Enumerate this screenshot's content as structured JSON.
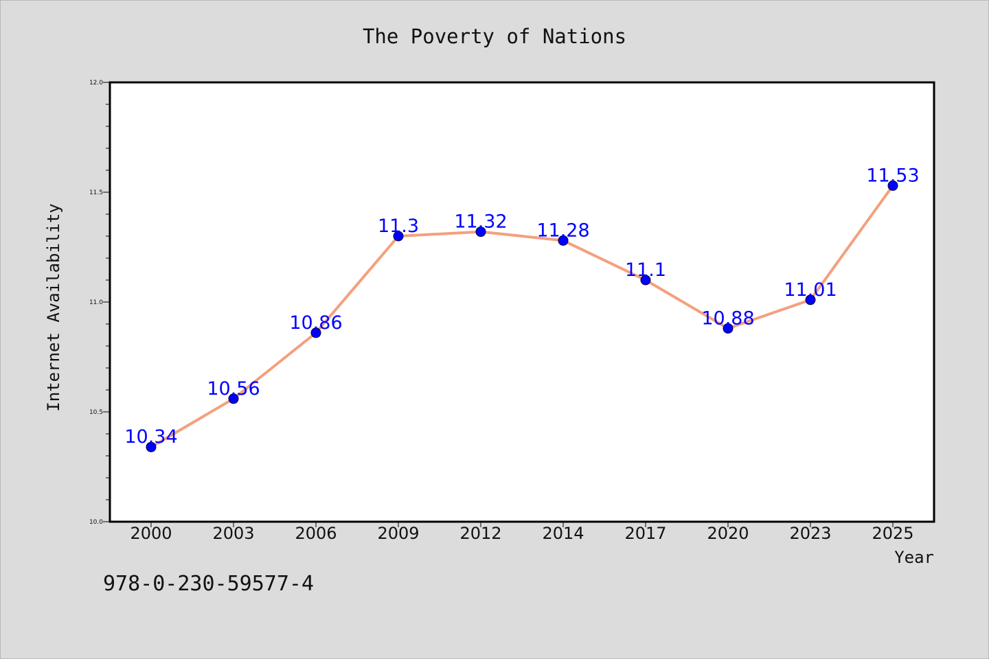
{
  "chart_data": {
    "type": "line",
    "title": "The Poverty of Nations",
    "xlabel": "Year",
    "ylabel": "Internet Availability",
    "categories": [
      "2000",
      "2003",
      "2006",
      "2009",
      "2012",
      "2014",
      "2017",
      "2020",
      "2023",
      "2025"
    ],
    "series": [
      {
        "values": [
          10.34,
          10.56,
          10.86,
          11.3,
          11.32,
          11.28,
          11.1,
          10.88,
          11.01,
          11.53
        ],
        "data_labels": [
          "10.34",
          "10.56",
          "10.86",
          "11.3",
          "11.32",
          "11.28",
          "11.1",
          "10.88",
          "11.01",
          "11.53"
        ]
      }
    ],
    "ylim": [
      10.0,
      12.0
    ],
    "yticks": [
      "10.0",
      "10.5",
      "11.0",
      "11.5",
      "12.0"
    ],
    "grid": false,
    "colors": {
      "line": "#f4a07e",
      "marker": "#0000ff",
      "data_label": "#0000ff",
      "plot_background": "#ffffff",
      "page_background": "#dcdcdc"
    }
  },
  "footer": {
    "code": "978-0-230-59577-4"
  }
}
